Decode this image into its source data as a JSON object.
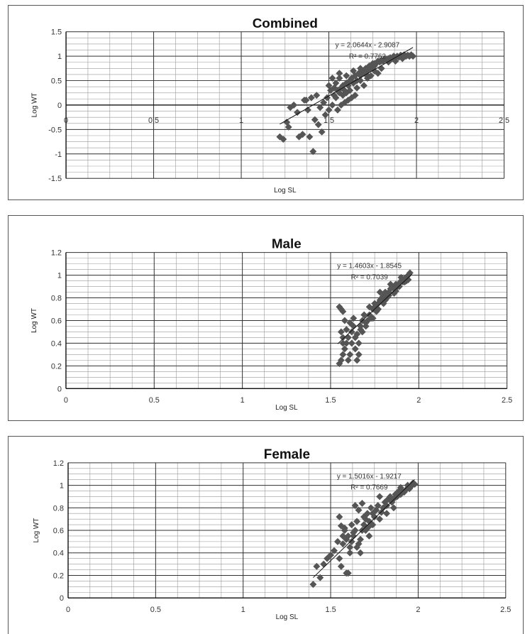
{
  "chart_data": [
    {
      "type": "scatter",
      "title": "Combined",
      "xlabel": "Log SL",
      "ylabel": "Log WT",
      "xlim": [
        0,
        2.5
      ],
      "ylim": [
        -1.5,
        1.5
      ],
      "xticks": [
        "0",
        "0.5",
        "1",
        "1.5",
        "2",
        "2.5"
      ],
      "yticks": [
        "1.5",
        "1",
        "0.5",
        "0",
        "-0.5",
        "-1",
        "-1.5"
      ],
      "x_axis_crosses_at": 0,
      "trendline": {
        "slope": 2.0644,
        "intercept": -2.9087,
        "x_range": [
          1.22,
          1.98
        ]
      },
      "equation": "y = 2.0644x - 2.9087",
      "r2": "R² = 0.7762",
      "grid": true,
      "marker_color": "#555555",
      "series": [
        {
          "x": [
            1.22,
            1.24,
            1.26,
            1.28,
            1.3,
            1.32,
            1.27,
            1.33,
            1.35,
            1.38,
            1.36,
            1.4,
            1.42,
            1.44,
            1.46,
            1.48,
            1.5,
            1.41,
            1.43,
            1.45,
            1.47,
            1.49,
            1.39,
            1.37,
            1.52,
            1.53,
            1.54,
            1.55,
            1.56,
            1.57,
            1.58,
            1.59,
            1.6,
            1.61,
            1.62,
            1.63,
            1.64,
            1.65,
            1.66,
            1.67,
            1.68,
            1.69,
            1.7,
            1.71,
            1.72,
            1.73,
            1.74,
            1.75,
            1.76,
            1.77,
            1.78,
            1.79,
            1.8,
            1.81,
            1.82,
            1.83,
            1.84,
            1.85,
            1.86,
            1.87,
            1.88,
            1.89,
            1.9,
            1.91,
            1.92,
            1.93,
            1.94,
            1.95,
            1.96,
            1.97,
            1.98,
            1.54,
            1.56,
            1.58,
            1.6,
            1.62,
            1.64,
            1.66,
            1.68,
            1.7,
            1.72,
            1.74,
            1.76,
            1.78,
            1.8,
            1.55,
            1.57,
            1.59,
            1.61,
            1.63,
            1.65,
            1.53,
            1.51,
            1.5,
            1.52,
            1.56,
            1.6,
            1.64,
            1.68,
            1.72,
            1.76,
            1.8,
            1.84,
            1.88,
            1.92,
            1.96
          ],
          "y": [
            -0.65,
            -0.7,
            -0.35,
            -0.05,
            0.0,
            -0.15,
            -0.45,
            -0.65,
            -0.6,
            -0.1,
            0.1,
            0.15,
            -0.3,
            -0.4,
            -0.55,
            -0.2,
            -0.1,
            -0.95,
            0.2,
            -0.05,
            0.05,
            0.15,
            -0.65,
            0.1,
            0.0,
            0.2,
            0.15,
            0.3,
            0.25,
            0.35,
            0.4,
            0.3,
            0.45,
            0.4,
            0.5,
            0.55,
            0.45,
            0.6,
            0.5,
            0.65,
            0.6,
            0.7,
            0.65,
            0.75,
            0.7,
            0.8,
            0.75,
            0.85,
            0.8,
            0.85,
            0.9,
            0.88,
            0.92,
            0.9,
            0.95,
            0.92,
            0.95,
            0.97,
            0.95,
            1.0,
            0.97,
            1.0,
            0.98,
            1.02,
            1.0,
            1.03,
            1.0,
            1.02,
            1.0,
            1.03,
            1.0,
            0.45,
            0.55,
            0.2,
            0.6,
            0.3,
            0.7,
            0.35,
            0.75,
            0.4,
            0.55,
            0.6,
            0.85,
            0.65,
            0.9,
            -0.1,
            0.0,
            0.05,
            0.1,
            0.15,
            0.2,
            0.35,
            0.3,
            0.4,
            0.55,
            0.65,
            0.25,
            0.45,
            0.5,
            0.6,
            0.7,
            0.75,
            0.88,
            0.9,
            0.95,
            1.0
          ]
        }
      ]
    },
    {
      "type": "scatter",
      "title": "Male",
      "xlabel": "Log SL",
      "ylabel": "Log WT",
      "xlim": [
        0,
        2.5
      ],
      "ylim": [
        0,
        1.2
      ],
      "xticks": [
        "0",
        "0.5",
        "1",
        "1.5",
        "2",
        "2.5"
      ],
      "yticks": [
        "1.2",
        "1",
        "0.8",
        "0.6",
        "0.4",
        "0.2",
        "0"
      ],
      "x_axis_crosses_at": 0,
      "trendline": {
        "slope": 1.4603,
        "intercept": -1.8545,
        "x_range": [
          1.54,
          1.96
        ]
      },
      "equation": "y = 1.4603x - 1.8545",
      "r2": "R² = 0.7039",
      "grid": true,
      "marker_color": "#555555",
      "series": [
        {
          "x": [
            1.55,
            1.56,
            1.57,
            1.58,
            1.59,
            1.6,
            1.55,
            1.56,
            1.57,
            1.58,
            1.56,
            1.57,
            1.6,
            1.61,
            1.62,
            1.63,
            1.64,
            1.65,
            1.66,
            1.67,
            1.68,
            1.62,
            1.64,
            1.66,
            1.68,
            1.7,
            1.71,
            1.72,
            1.73,
            1.74,
            1.75,
            1.76,
            1.77,
            1.78,
            1.79,
            1.8,
            1.81,
            1.82,
            1.83,
            1.84,
            1.85,
            1.86,
            1.87,
            1.88,
            1.89,
            1.9,
            1.91,
            1.92,
            1.93,
            1.94,
            1.95,
            1.69,
            1.72,
            1.75,
            1.78,
            1.81,
            1.84,
            1.87,
            1.9,
            1.93,
            1.57,
            1.59,
            1.61,
            1.63,
            1.65,
            1.67,
            1.7,
            1.74,
            1.77,
            1.8,
            1.83,
            1.86,
            1.89,
            1.92,
            1.94
          ],
          "y": [
            0.22,
            0.25,
            0.3,
            0.35,
            0.4,
            0.45,
            0.72,
            0.7,
            0.68,
            0.6,
            0.5,
            0.4,
            0.25,
            0.3,
            0.5,
            0.55,
            0.45,
            0.25,
            0.3,
            0.55,
            0.6,
            0.4,
            0.35,
            0.4,
            0.5,
            0.55,
            0.6,
            0.65,
            0.62,
            0.7,
            0.72,
            0.68,
            0.75,
            0.78,
            0.8,
            0.82,
            0.85,
            0.8,
            0.85,
            0.88,
            0.9,
            0.88,
            0.92,
            0.9,
            0.93,
            0.95,
            0.94,
            0.97,
            0.98,
            1.0,
            1.02,
            0.65,
            0.72,
            0.75,
            0.85,
            0.78,
            0.92,
            0.86,
            0.98,
            0.95,
            0.45,
            0.52,
            0.58,
            0.62,
            0.48,
            0.52,
            0.58,
            0.62,
            0.7,
            0.75,
            0.82,
            0.84,
            0.9,
            0.94,
            0.96
          ]
        }
      ]
    },
    {
      "type": "scatter",
      "title": "Female",
      "xlabel": "Log SL",
      "ylabel": "Log WT",
      "xlim": [
        0,
        2.5
      ],
      "ylim": [
        0,
        1.2
      ],
      "xticks": [
        "0",
        "0.5",
        "1",
        "1.5",
        "2",
        "2.5"
      ],
      "yticks": [
        "1.2",
        "1",
        "0.8",
        "0.6",
        "0.4",
        "0.2",
        "0"
      ],
      "x_axis_crosses_at": 0,
      "trendline": {
        "slope": 1.5016,
        "intercept": -1.9217,
        "x_range": [
          1.4,
          1.98
        ]
      },
      "equation": "y = 1.5016x - 1.9217",
      "r2": "R² = 0.7669",
      "grid": true,
      "marker_color": "#555555",
      "series": [
        {
          "x": [
            1.4,
            1.42,
            1.44,
            1.46,
            1.48,
            1.5,
            1.52,
            1.54,
            1.55,
            1.56,
            1.57,
            1.58,
            1.59,
            1.6,
            1.61,
            1.62,
            1.63,
            1.64,
            1.65,
            1.66,
            1.67,
            1.68,
            1.69,
            1.7,
            1.71,
            1.72,
            1.73,
            1.74,
            1.75,
            1.76,
            1.77,
            1.78,
            1.79,
            1.8,
            1.81,
            1.82,
            1.83,
            1.84,
            1.85,
            1.86,
            1.87,
            1.88,
            1.89,
            1.9,
            1.91,
            1.92,
            1.93,
            1.94,
            1.95,
            1.96,
            1.97,
            1.98,
            1.55,
            1.58,
            1.56,
            1.6,
            1.64,
            1.66,
            1.62,
            1.68,
            1.7,
            1.72,
            1.74,
            1.78,
            1.82,
            1.86,
            1.9,
            1.57,
            1.59,
            1.61,
            1.63,
            1.65,
            1.67,
            1.69,
            1.71,
            1.73
          ],
          "y": [
            0.12,
            0.28,
            0.18,
            0.3,
            0.35,
            0.38,
            0.42,
            0.5,
            0.72,
            0.64,
            0.55,
            0.6,
            0.22,
            0.22,
            0.4,
            0.5,
            0.55,
            0.6,
            0.45,
            0.48,
            0.52,
            0.6,
            0.65,
            0.7,
            0.62,
            0.68,
            0.8,
            0.75,
            0.72,
            0.78,
            0.82,
            0.7,
            0.76,
            0.8,
            0.85,
            0.82,
            0.88,
            0.9,
            0.85,
            0.88,
            0.92,
            0.9,
            0.95,
            0.98,
            0.95,
            0.94,
            0.96,
            1.0,
            0.97,
            0.99,
            1.02,
            1.01,
            0.35,
            0.62,
            0.28,
            0.55,
            0.82,
            0.78,
            0.65,
            0.84,
            0.6,
            0.55,
            0.65,
            0.9,
            0.75,
            0.8,
            0.92,
            0.48,
            0.52,
            0.45,
            0.58,
            0.68,
            0.4,
            0.72,
            0.75,
            0.65
          ]
        }
      ]
    }
  ]
}
